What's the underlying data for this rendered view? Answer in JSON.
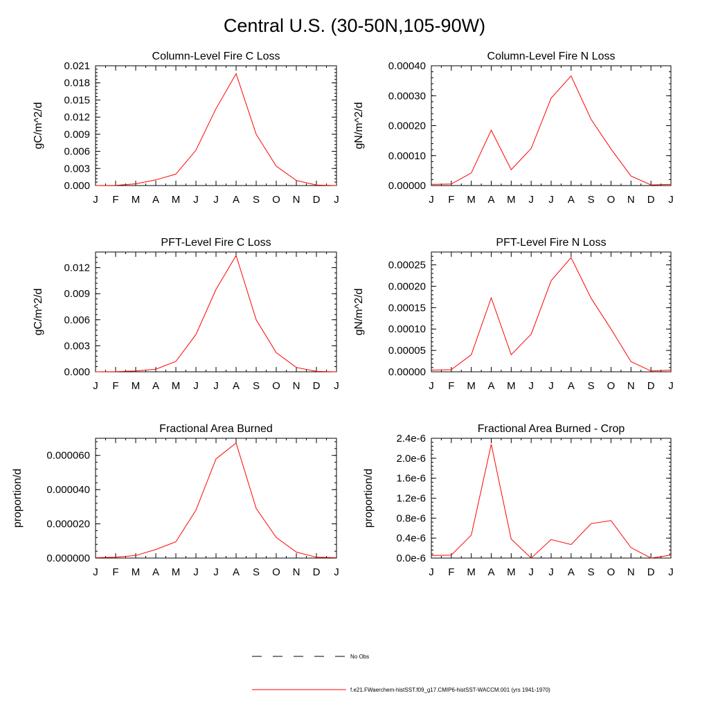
{
  "title": "Central U.S. (30-50N,105-90W)",
  "months": [
    "J",
    "F",
    "M",
    "A",
    "M",
    "J",
    "J",
    "A",
    "S",
    "O",
    "N",
    "D",
    "J"
  ],
  "legend": [
    {
      "label": "No Obs",
      "style": "dashed",
      "color": "#000000"
    },
    {
      "label": "f.e21.FWaerchem-histSST.f09_g17.CMIP6-histSST-WACCM.001 (yrs 1941-1970)",
      "style": "solid",
      "color": "#ff0000"
    }
  ],
  "chart_data": [
    {
      "type": "line",
      "title": "Column-Level Fire C Loss",
      "ylabel": "gC/m^2/d",
      "ylim": [
        0,
        0.021
      ],
      "yticks": [
        "0.000",
        "0.003",
        "0.006",
        "0.009",
        "0.012",
        "0.015",
        "0.018",
        "0.021"
      ],
      "x": [
        "J",
        "F",
        "M",
        "A",
        "M",
        "J",
        "J",
        "A",
        "S",
        "O",
        "N",
        "D",
        "J"
      ],
      "series": [
        {
          "color": "#ff0000",
          "values": [
            0.0,
            3e-05,
            0.0003,
            0.001,
            0.002,
            0.0062,
            0.0135,
            0.0196,
            0.009,
            0.0034,
            0.0009,
            0.0001,
            0.0
          ]
        }
      ]
    },
    {
      "type": "line",
      "title": "Column-Level Fire N Loss",
      "ylabel": "gN/m^2/d",
      "ylim": [
        0,
        0.0004
      ],
      "yticks": [
        "0.00000",
        "0.00010",
        "0.00020",
        "0.00030",
        "0.00040"
      ],
      "x": [
        "J",
        "F",
        "M",
        "A",
        "M",
        "J",
        "J",
        "A",
        "S",
        "O",
        "N",
        "D",
        "J"
      ],
      "series": [
        {
          "color": "#ff0000",
          "values": [
            4e-06,
            5e-06,
            4.2e-05,
            0.000185,
            5.3e-05,
            0.000124,
            0.000292,
            0.000366,
            0.000221,
            0.000122,
            3.2e-05,
            2e-06,
            4e-06
          ]
        }
      ]
    },
    {
      "type": "line",
      "title": "PFT-Level Fire C Loss",
      "ylabel": "gC/m^2/d",
      "ylim": [
        0,
        0.0138
      ],
      "yticks": [
        "0.000",
        "0.003",
        "0.006",
        "0.009",
        "0.012"
      ],
      "x": [
        "J",
        "F",
        "M",
        "A",
        "M",
        "J",
        "J",
        "A",
        "S",
        "O",
        "N",
        "D",
        "J"
      ],
      "series": [
        {
          "color": "#ff0000",
          "values": [
            0.0,
            2e-05,
            0.0001,
            0.0003,
            0.0012,
            0.0043,
            0.0095,
            0.0134,
            0.006,
            0.0022,
            0.0005,
            5e-05,
            0.0
          ]
        }
      ]
    },
    {
      "type": "line",
      "title": "PFT-Level Fire N Loss",
      "ylabel": "gN/m^2/d",
      "ylim": [
        0,
        0.00028
      ],
      "yticks": [
        "0.00000",
        "0.00005",
        "0.00010",
        "0.00015",
        "0.00020",
        "0.00025"
      ],
      "x": [
        "J",
        "F",
        "M",
        "A",
        "M",
        "J",
        "J",
        "A",
        "S",
        "O",
        "N",
        "D",
        "J"
      ],
      "series": [
        {
          "color": "#ff0000",
          "values": [
            4e-06,
            5e-06,
            4e-05,
            0.000173,
            4e-05,
            8.8e-05,
            0.000213,
            0.000267,
            0.000172,
            0.0001,
            2.4e-05,
            2e-06,
            4e-06
          ]
        }
      ]
    },
    {
      "type": "line",
      "title": "Fractional Area Burned",
      "ylabel": "proportion/d",
      "ylim": [
        0,
        7e-05
      ],
      "yticks": [
        "0.000000",
        "0.000020",
        "0.000040",
        "0.000060"
      ],
      "x": [
        "J",
        "F",
        "M",
        "A",
        "M",
        "J",
        "J",
        "A",
        "S",
        "O",
        "N",
        "D",
        "J"
      ],
      "series": [
        {
          "color": "#ff0000",
          "values": [
            2e-07,
            5e-07,
            1.5e-06,
            5e-06,
            9.5e-06,
            2.8e-05,
            5.8e-05,
            6.72e-05,
            2.9e-05,
            1.2e-05,
            3.5e-06,
            5e-07,
            2e-07
          ]
        }
      ]
    },
    {
      "type": "line",
      "title": "Fractional Area Burned - Crop",
      "ylabel": "proportion/d",
      "ylim": [
        0,
        2.4e-06
      ],
      "yticks": [
        "0.0e-6",
        "0.4e-6",
        "0.8e-6",
        "1.2e-6",
        "1.6e-6",
        "2.0e-6",
        "2.4e-6"
      ],
      "x": [
        "J",
        "F",
        "M",
        "A",
        "M",
        "J",
        "J",
        "A",
        "S",
        "O",
        "N",
        "D",
        "J"
      ],
      "series": [
        {
          "color": "#ff0000",
          "values": [
            5e-08,
            6e-08,
            4.6e-07,
            2.28e-06,
            3.8e-07,
            0.0,
            3.7e-07,
            2.7e-07,
            6.9e-07,
            7.5e-07,
            2.1e-07,
            0.0,
            6e-08
          ]
        }
      ]
    }
  ]
}
